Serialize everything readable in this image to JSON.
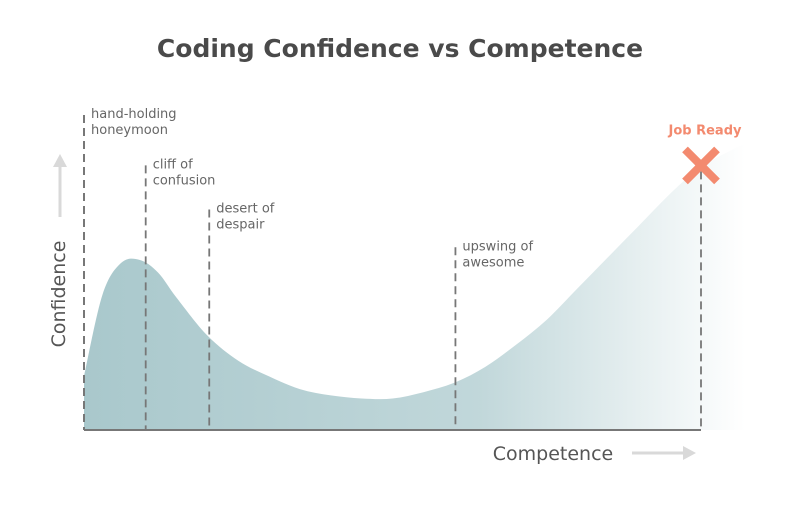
{
  "title": "Coding Confidence vs Competence",
  "colors": {
    "curve_fill": "#a9c8cc",
    "target": "#f38a6f",
    "axis": "#777777",
    "arrow": "#d9d9d9"
  },
  "chart_data": {
    "type": "area",
    "title": "Coding Confidence vs Competence",
    "xlabel": "Competence",
    "ylabel": "Confidence",
    "xlim": [
      0,
      100
    ],
    "ylim": [
      0,
      100
    ],
    "grid": false,
    "ticks": false,
    "curve": {
      "x": [
        0,
        3,
        6,
        9,
        12,
        15,
        20,
        25,
        30,
        35,
        40,
        45,
        50,
        55,
        60,
        65,
        70,
        75,
        80,
        85,
        90,
        95,
        100
      ],
      "y": [
        17,
        43,
        53,
        54,
        50,
        42,
        30,
        22,
        17,
        13,
        11,
        10,
        10,
        12,
        15,
        20,
        27,
        35,
        45,
        55,
        65,
        75,
        84
      ]
    },
    "annotations": [
      {
        "label": "hand-holding honeymoon",
        "lines": [
          "hand-holding",
          "honeymoon"
        ],
        "x": 0,
        "y_top": 100
      },
      {
        "label": "cliff of confusion",
        "lines": [
          "cliff of",
          "confusion"
        ],
        "x": 10,
        "y_top": 84
      },
      {
        "label": "desert of despair",
        "lines": [
          "desert of",
          "despair"
        ],
        "x": 20.3,
        "y_top": 70
      },
      {
        "label": "upswing of awesome",
        "lines": [
          "upswing of",
          "awesome"
        ],
        "x": 60.2,
        "y_top": 58
      }
    ],
    "target": {
      "label": "Job Ready",
      "x": 100,
      "y": 84
    }
  }
}
